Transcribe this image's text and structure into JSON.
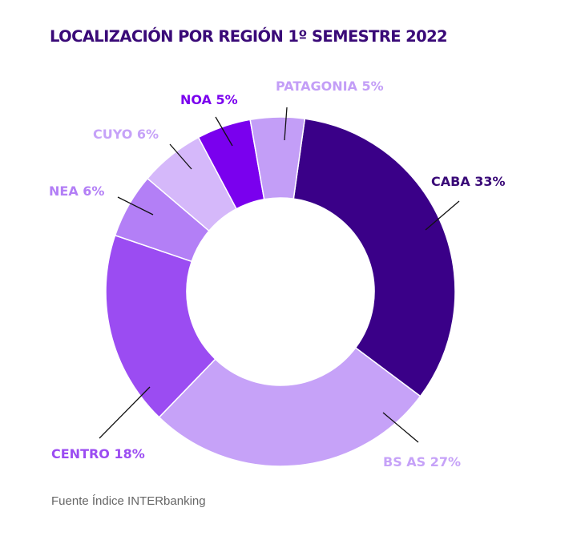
{
  "chart_data": {
    "type": "pie",
    "title": "LOCALIZACIÓN POR REGIÓN 1º SEMESTRE 2022",
    "donut": true,
    "categories": [
      "CABA",
      "BS AS",
      "CENTRO",
      "NEA",
      "CUYO",
      "NOA",
      "PATAGONIA"
    ],
    "values": [
      33,
      27,
      18,
      6,
      6,
      5,
      5
    ],
    "labels": [
      "CABA 33%",
      "BS AS 27%",
      "CENTRO 18%",
      "NEA 6%",
      "CUYO 6%",
      "NOA 5%",
      "PATAGONIA 5%"
    ],
    "colors": [
      "#3a0088",
      "#c6a2f8",
      "#9b4cf2",
      "#b37ff6",
      "#d5b8fa",
      "#7a00ee",
      "#c39ef7"
    ],
    "label_colors": [
      "#3a0a78",
      "#c6a2f8",
      "#9b4cf2",
      "#b37ff6",
      "#c6a2f8",
      "#7a00ee",
      "#c39ef7"
    ],
    "legend": "none"
  },
  "source": "Fuente Índice INTERbanking"
}
